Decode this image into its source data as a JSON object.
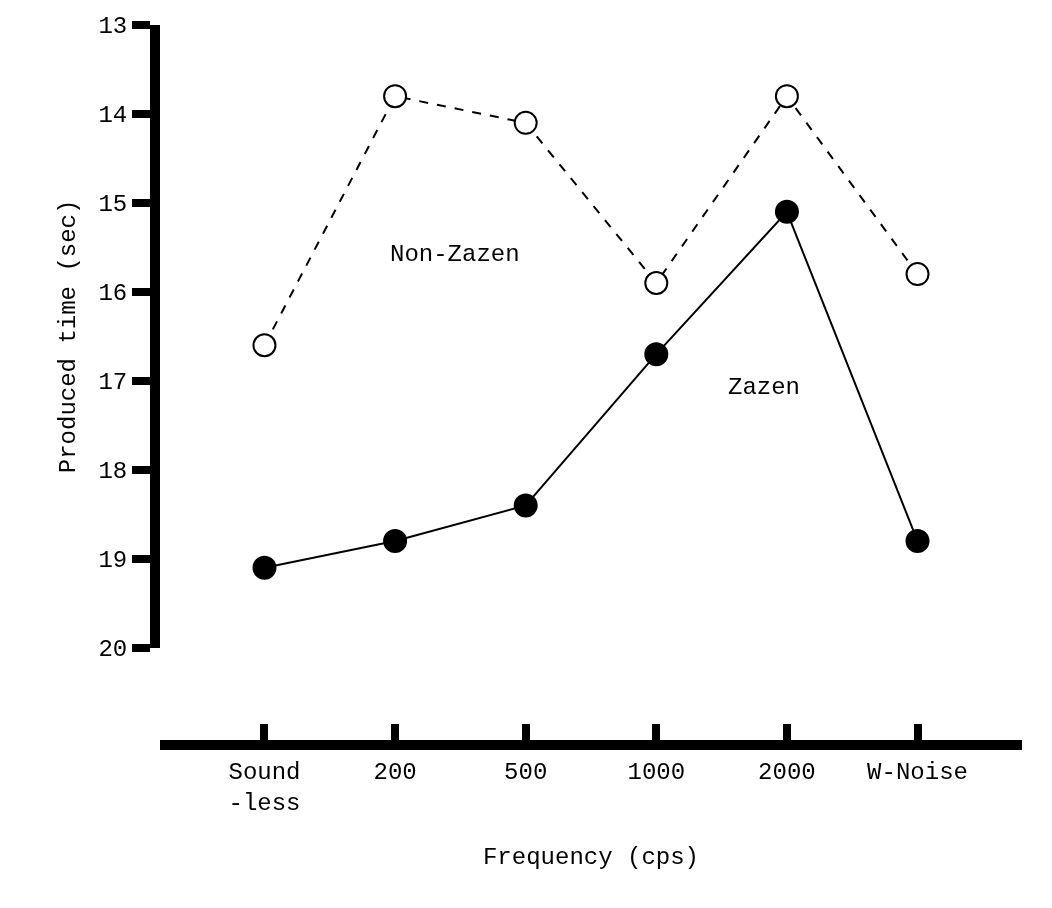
{
  "chart_data": {
    "type": "line",
    "xlabel": "Frequency (cps)",
    "ylabel": "Produced time (sec)",
    "categories": [
      "Sound\n-less",
      "200",
      "500",
      "1000",
      "2000",
      "W-Noise"
    ],
    "series": [
      {
        "name": "Non-Zazen",
        "color": "#000000",
        "line_style": "dashed",
        "values": [
          16.6,
          13.8,
          14.1,
          15.9,
          13.8,
          15.8
        ]
      },
      {
        "name": "Zazen",
        "color": "#000000",
        "line_style": "solid",
        "values": [
          19.1,
          18.8,
          18.4,
          16.7,
          15.1,
          18.8
        ]
      }
    ],
    "ylim": [
      20,
      13
    ],
    "yticks": [
      13,
      14,
      15,
      16,
      17,
      18,
      19,
      20
    ],
    "marker": "circle",
    "grid": false,
    "legend": false
  }
}
